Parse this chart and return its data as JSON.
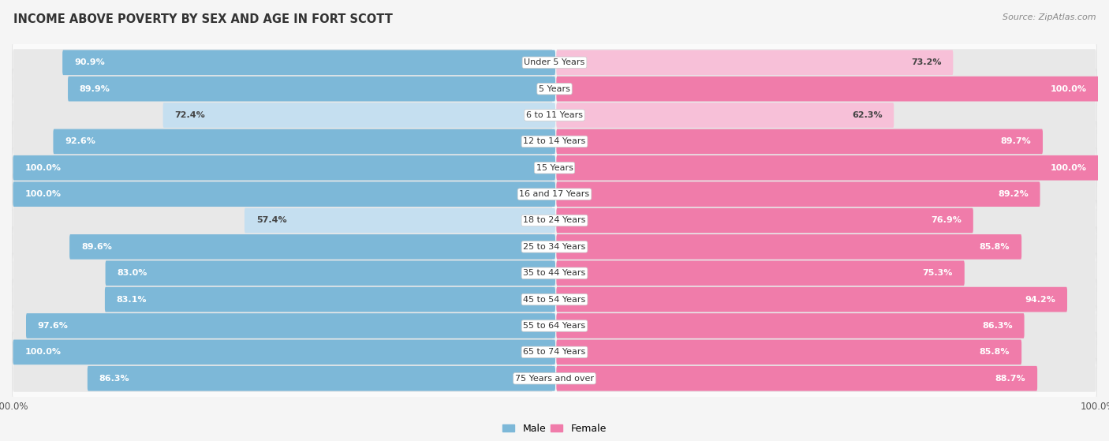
{
  "title": "INCOME ABOVE POVERTY BY SEX AND AGE IN FORT SCOTT",
  "source": "Source: ZipAtlas.com",
  "categories": [
    "Under 5 Years",
    "5 Years",
    "6 to 11 Years",
    "12 to 14 Years",
    "15 Years",
    "16 and 17 Years",
    "18 to 24 Years",
    "25 to 34 Years",
    "35 to 44 Years",
    "45 to 54 Years",
    "55 to 64 Years",
    "65 to 74 Years",
    "75 Years and over"
  ],
  "male_values": [
    90.9,
    89.9,
    72.4,
    92.6,
    100.0,
    100.0,
    57.4,
    89.6,
    83.0,
    83.1,
    97.6,
    100.0,
    86.3
  ],
  "female_values": [
    73.2,
    100.0,
    62.3,
    89.7,
    100.0,
    89.2,
    76.9,
    85.8,
    75.3,
    94.2,
    86.3,
    85.8,
    88.7
  ],
  "male_color": "#7db8d8",
  "male_color_light": "#c5dff0",
  "female_color": "#f07caa",
  "female_color_light": "#f7c0d8",
  "track_color": "#e8e8e8",
  "row_alt_color": "#f2f2f2",
  "row_main_color": "#fafafa",
  "bg_color": "#f5f5f5",
  "title_fontsize": 10.5,
  "label_fontsize": 8,
  "category_fontsize": 8,
  "source_fontsize": 8
}
